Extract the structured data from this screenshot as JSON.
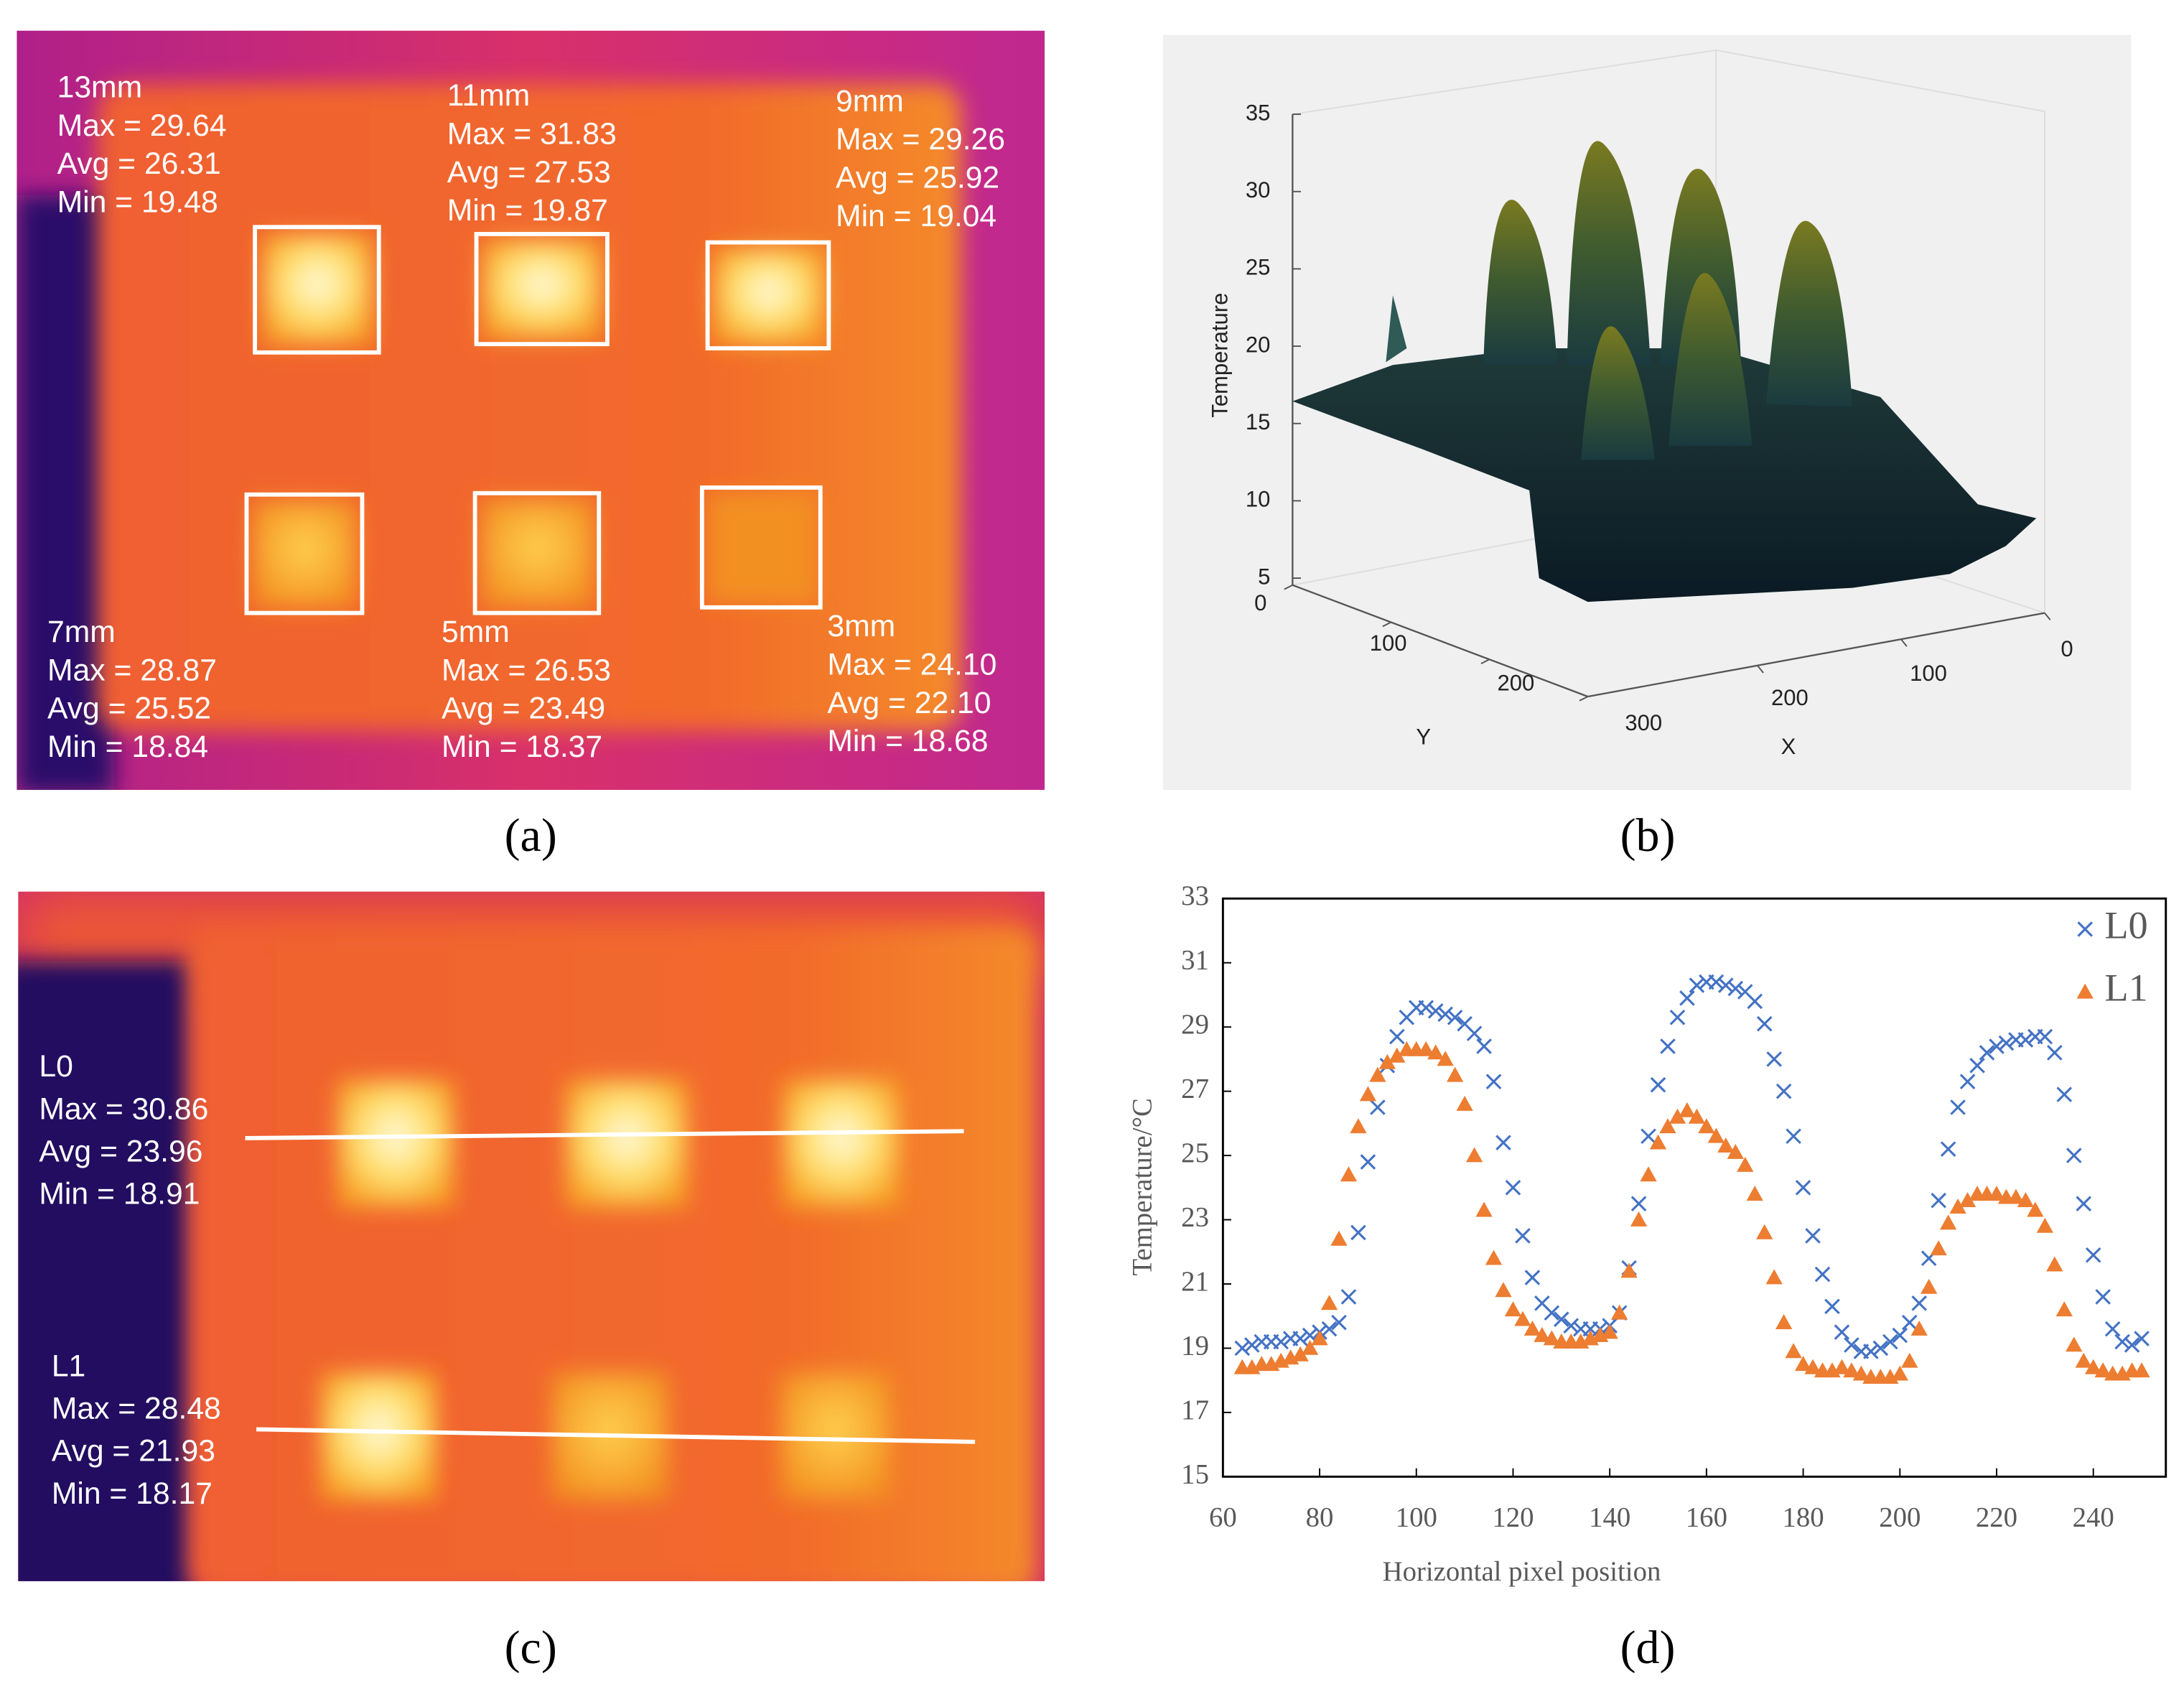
{
  "panel_a": {
    "caption": "(a)",
    "regions": [
      {
        "size": "13mm",
        "max": "Max = 29.64",
        "avg": "Avg = 26.31",
        "min": "Min = 19.48"
      },
      {
        "size": "11mm",
        "max": "Max = 31.83",
        "avg": "Avg = 27.53",
        "min": "Min = 19.87"
      },
      {
        "size": "9mm",
        "max": "Max = 29.26",
        "avg": "Avg = 25.92",
        "min": "Min = 19.04"
      },
      {
        "size": "7mm",
        "max": "Max = 28.87",
        "avg": "Avg = 25.52",
        "min": "Min = 18.84"
      },
      {
        "size": "5mm",
        "max": "Max = 26.53",
        "avg": "Avg = 23.49",
        "min": "Min = 18.37"
      },
      {
        "size": "3mm",
        "max": "Max = 24.10",
        "avg": "Avg = 22.10",
        "min": "Min = 18.68"
      }
    ]
  },
  "panel_b": {
    "caption": "(b)",
    "zlabel": "Temperature",
    "ylabel": "Y",
    "xlabel": "X",
    "zticks": [
      5,
      10,
      15,
      20,
      25,
      30,
      35
    ],
    "yticks": [
      0,
      100,
      200,
      300
    ],
    "xticks": [
      0,
      100,
      200
    ]
  },
  "panel_c": {
    "caption": "(c)",
    "lines": [
      {
        "name": "L0",
        "max": "Max = 30.86",
        "avg": "Avg = 23.96",
        "min": "Min = 18.91"
      },
      {
        "name": "L1",
        "max": "Max = 28.48",
        "avg": "Avg = 21.93",
        "min": "Min = 18.17"
      }
    ]
  },
  "chart_data": {
    "type": "scatter",
    "caption": "(d)",
    "xlabel": "Horizontal pixel position",
    "ylabel": "Temperature/°C",
    "legend": "upper right",
    "x": [
      64,
      66,
      68,
      70,
      72,
      74,
      76,
      78,
      80,
      82,
      84,
      86,
      88,
      90,
      92,
      94,
      96,
      98,
      100,
      102,
      104,
      106,
      108,
      110,
      112,
      114,
      116,
      118,
      120,
      122,
      124,
      126,
      128,
      130,
      132,
      134,
      136,
      138,
      140,
      142,
      144,
      146,
      148,
      150,
      152,
      154,
      156,
      158,
      160,
      162,
      164,
      166,
      168,
      170,
      172,
      174,
      176,
      178,
      180,
      182,
      184,
      186,
      188,
      190,
      192,
      194,
      196,
      198,
      200,
      202,
      204,
      206,
      208,
      210,
      212,
      214,
      216,
      218,
      220,
      222,
      224,
      226,
      228,
      230,
      232,
      234,
      236,
      238,
      240,
      242,
      244,
      246,
      248,
      250
    ],
    "series": [
      {
        "name": "L0",
        "color": "#4472c4",
        "marker": "x",
        "values": [
          19.0,
          19.1,
          19.2,
          19.2,
          19.2,
          19.3,
          19.3,
          19.4,
          19.5,
          19.6,
          19.8,
          20.6,
          22.6,
          24.8,
          26.5,
          27.8,
          28.7,
          29.3,
          29.6,
          29.6,
          29.5,
          29.4,
          29.3,
          29.1,
          28.8,
          28.4,
          27.3,
          25.4,
          24.0,
          22.5,
          21.2,
          20.4,
          20.1,
          19.9,
          19.7,
          19.6,
          19.6,
          19.6,
          19.7,
          20.1,
          21.5,
          23.5,
          25.6,
          27.2,
          28.4,
          29.3,
          29.9,
          30.3,
          30.4,
          30.4,
          30.3,
          30.2,
          30.1,
          29.8,
          29.1,
          28.0,
          27.0,
          25.6,
          24.0,
          22.5,
          21.3,
          20.3,
          19.5,
          19.1,
          18.9,
          18.9,
          19.0,
          19.2,
          19.4,
          19.8,
          20.4,
          21.8,
          23.6,
          25.2,
          26.5,
          27.3,
          27.8,
          28.2,
          28.4,
          28.5,
          28.6,
          28.6,
          28.7,
          28.7,
          28.2,
          26.9,
          25.0,
          23.5,
          21.9,
          20.6,
          19.6,
          19.2,
          19.1,
          19.3
        ]
      },
      {
        "name": "L1",
        "color": "#ed7d31",
        "marker": "triangle",
        "values": [
          18.4,
          18.4,
          18.5,
          18.5,
          18.6,
          18.7,
          18.8,
          19.0,
          19.3,
          20.4,
          22.4,
          24.4,
          25.9,
          26.9,
          27.5,
          27.9,
          28.1,
          28.3,
          28.3,
          28.3,
          28.2,
          28.0,
          27.5,
          26.6,
          25.0,
          23.3,
          21.8,
          20.8,
          20.2,
          19.9,
          19.6,
          19.4,
          19.3,
          19.2,
          19.2,
          19.2,
          19.3,
          19.4,
          19.5,
          20.1,
          21.4,
          23.0,
          24.4,
          25.4,
          25.9,
          26.2,
          26.4,
          26.2,
          25.9,
          25.6,
          25.3,
          25.1,
          24.7,
          23.8,
          22.6,
          21.2,
          19.8,
          18.9,
          18.5,
          18.4,
          18.3,
          18.3,
          18.4,
          18.3,
          18.2,
          18.1,
          18.1,
          18.1,
          18.2,
          18.6,
          19.6,
          20.9,
          22.1,
          22.9,
          23.4,
          23.6,
          23.8,
          23.8,
          23.8,
          23.7,
          23.7,
          23.6,
          23.3,
          22.8,
          21.6,
          20.2,
          19.1,
          18.6,
          18.4,
          18.3,
          18.2,
          18.2,
          18.3,
          18.3
        ]
      }
    ],
    "xlim": [
      60,
      255
    ],
    "ylim": [
      15,
      33
    ],
    "xticks": [
      60,
      80,
      100,
      120,
      140,
      160,
      180,
      200,
      220,
      240
    ],
    "yticks": [
      15,
      17,
      19,
      21,
      23,
      25,
      27,
      29,
      31,
      33
    ]
  }
}
